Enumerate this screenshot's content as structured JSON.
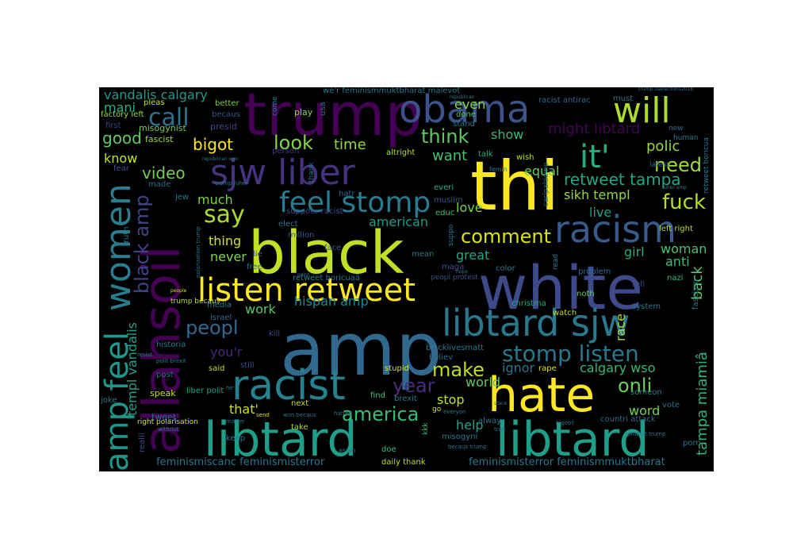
{
  "words": [
    {
      "text": "amp",
      "color": "#31688e"
    },
    {
      "text": "white",
      "color": "#3e4a89"
    },
    {
      "text": "black",
      "color": "#c2df23"
    },
    {
      "text": "thi",
      "color": "#fde725"
    },
    {
      "text": "trump",
      "color": "#440154"
    },
    {
      "text": "hate",
      "color": "#fde725"
    },
    {
      "text": "libtard",
      "color": "#1f9e89"
    },
    {
      "text": "libtard",
      "color": "#1f9e89"
    },
    {
      "text": "allahsoil",
      "color": "#440154"
    },
    {
      "text": "libtard sjw",
      "color": "#2a788e"
    },
    {
      "text": "sjw liber",
      "color": "#46337f"
    },
    {
      "text": "obama",
      "color": "#3b528b"
    },
    {
      "text": "racism",
      "color": "#375b8d"
    },
    {
      "text": "racist",
      "color": "#26828e"
    },
    {
      "text": "will",
      "color": "#addc30"
    },
    {
      "text": "women",
      "color": "#287d8e"
    },
    {
      "text": "listen retweet",
      "color": "#fde725"
    },
    {
      "text": "feel stomp",
      "color": "#287c8e"
    },
    {
      "text": "amp feel",
      "color": "#1f968b"
    },
    {
      "text": "it'",
      "color": "#29af7f"
    },
    {
      "text": "stomp listen",
      "color": "#2a788e"
    },
    {
      "text": "say",
      "color": "#a8db34"
    },
    {
      "text": "call",
      "color": "#2c728e"
    },
    {
      "text": "comment",
      "color": "#d8e219"
    },
    {
      "text": "look",
      "color": "#84d44b"
    },
    {
      "text": "think",
      "color": "#5ec962"
    },
    {
      "text": "peopl",
      "color": "#31688e"
    },
    {
      "text": "fuck",
      "color": "#b5de2b"
    },
    {
      "text": "need",
      "color": "#9fda3a"
    },
    {
      "text": "america",
      "color": "#3bbb75"
    },
    {
      "text": "make",
      "color": "#bddf26"
    },
    {
      "text": "onli",
      "color": "#6ece58"
    },
    {
      "text": "year",
      "color": "#472d7b"
    },
    {
      "text": "black amp",
      "color": "#404387"
    },
    {
      "text": "retweet tampa",
      "color": "#22a884"
    },
    {
      "text": "video",
      "color": "#73d056"
    },
    {
      "text": "good",
      "color": "#63cb5f"
    },
    {
      "text": "bigot",
      "color": "#fde725"
    },
    {
      "text": "time",
      "color": "#8fd744"
    },
    {
      "text": "want",
      "color": "#48c16e"
    },
    {
      "text": "might libtard",
      "color": "#440154"
    },
    {
      "text": "polic",
      "color": "#95d840"
    },
    {
      "text": "woman",
      "color": "#4ac16d"
    },
    {
      "text": "tampa miamiâ",
      "color": "#2db27d"
    },
    {
      "text": "back",
      "color": "#5cc863"
    },
    {
      "text": "calgary wso",
      "color": "#35b779"
    },
    {
      "text": "vandalis calgary",
      "color": "#1f988b"
    },
    {
      "text": "mani",
      "color": "#2ab07f"
    },
    {
      "text": "know",
      "color": "#c8e020"
    },
    {
      "text": "much",
      "color": "#7ad151"
    },
    {
      "text": "thing",
      "color": "#d2e21b"
    },
    {
      "text": "never",
      "color": "#7fd34e"
    },
    {
      "text": "work",
      "color": "#54c568"
    },
    {
      "text": "american",
      "color": "#1e9b8a"
    },
    {
      "text": "hispan amp",
      "color": "#23888e"
    },
    {
      "text": "sikh templ",
      "color": "#93d741"
    },
    {
      "text": "equal",
      "color": "#65cb5e"
    },
    {
      "text": "live",
      "color": "#1fa187"
    },
    {
      "text": "girl",
      "color": "#26ad81"
    },
    {
      "text": "anti",
      "color": "#3fbc73"
    },
    {
      "text": "race",
      "color": "#aadc32"
    },
    {
      "text": "even",
      "color": "#81d34d"
    },
    {
      "text": "show",
      "color": "#37b878"
    },
    {
      "text": "love",
      "color": "#77d153"
    },
    {
      "text": "great",
      "color": "#22a785"
    },
    {
      "text": "stop",
      "color": "#c5e021"
    },
    {
      "text": "help",
      "color": "#20a486"
    },
    {
      "text": "world",
      "color": "#5ac864"
    },
    {
      "text": "word",
      "color": "#73d056"
    },
    {
      "text": "you'r",
      "color": "#482576"
    },
    {
      "text": "that'",
      "color": "#d0e11c"
    },
    {
      "text": "templ vandalis",
      "color": "#1fa188"
    },
    {
      "text": "ignor",
      "color": "#2c728e"
    },
    {
      "text": "feminismiscanc feminismisterror",
      "color": "#2a768e"
    },
    {
      "text": "feminismisterror feminismmuktbharat",
      "color": "#2a788e"
    },
    {
      "text": "misogynist",
      "color": "#70cf57"
    },
    {
      "text": "fascist",
      "color": "#a2da37"
    },
    {
      "text": "presid",
      "color": "#3f4889"
    },
    {
      "text": "pleas",
      "color": "#c8e020"
    },
    {
      "text": "better",
      "color": "#7ad151"
    },
    {
      "text": "factory left",
      "color": "#95d840"
    },
    {
      "text": "becaus",
      "color": "#3b528b"
    },
    {
      "text": "first",
      "color": "#404588"
    },
    {
      "text": "racist antirac",
      "color": "#31688e"
    },
    {
      "text": "must",
      "color": "#2d708e"
    },
    {
      "text": "stand",
      "color": "#2a768e"
    },
    {
      "text": "play",
      "color": "#8bd646"
    },
    {
      "text": "usa",
      "color": "#2f6c8e"
    },
    {
      "text": "done",
      "color": "#54c568"
    },
    {
      "text": "talk",
      "color": "#29af7f"
    },
    {
      "text": "wish",
      "color": "#bade28"
    },
    {
      "text": "altright",
      "color": "#b0dd2f"
    },
    {
      "text": "person",
      "color": "#453781"
    },
    {
      "text": "suppoer racist",
      "color": "#3e4a89"
    },
    {
      "text": "elect",
      "color": "#2c728e"
    },
    {
      "text": "hatr",
      "color": "#31688e"
    },
    {
      "text": "everi",
      "color": "#2ab07f"
    },
    {
      "text": "muslim",
      "color": "#3b528b"
    },
    {
      "text": "educ",
      "color": "#3fbc73"
    },
    {
      "text": "million",
      "color": "#3a548c"
    },
    {
      "text": "face",
      "color": "#355e8d"
    },
    {
      "text": "lie",
      "color": "#3f4889"
    },
    {
      "text": "free",
      "color": "#2d708e"
    },
    {
      "text": "mean",
      "color": "#2a768e"
    },
    {
      "text": "maga",
      "color": "#3d4e8a"
    },
    {
      "text": "color",
      "color": "#2a788e"
    },
    {
      "text": "retweet boricuaâ",
      "color": "#2a788e"
    },
    {
      "text": "peopl protest",
      "color": "#3b528b"
    },
    {
      "text": "problem",
      "color": "#2f6c8e"
    },
    {
      "text": "tell",
      "color": "#3e4a89"
    },
    {
      "text": "noth",
      "color": "#5ec962"
    },
    {
      "text": "nazi",
      "color": "#3bbb75"
    },
    {
      "text": "left right",
      "color": "#b5de2b"
    },
    {
      "text": "fascism",
      "color": "#2a788e"
    },
    {
      "text": "system",
      "color": "#2a788e"
    },
    {
      "text": "christma",
      "color": "#22a785"
    },
    {
      "text": "watch",
      "color": "#bddf26"
    },
    {
      "text": "media",
      "color": "#2a768e"
    },
    {
      "text": "israel",
      "color": "#2f6c8e"
    },
    {
      "text": "historia",
      "color": "#2a788e"
    },
    {
      "text": "post",
      "color": "#2c728e"
    },
    {
      "text": "speak",
      "color": "#c8e020"
    },
    {
      "text": "joke",
      "color": "#2a788e"
    },
    {
      "text": "tweet",
      "color": "#2d708e"
    },
    {
      "text": "right polarisation",
      "color": "#d8e219"
    },
    {
      "text": "liber polit",
      "color": "#22a785"
    },
    {
      "text": "said",
      "color": "#bddf26"
    },
    {
      "text": "still",
      "color": "#3b528b"
    },
    {
      "text": "kill",
      "color": "#3e4a89"
    },
    {
      "text": "keep",
      "color": "#2a788e"
    },
    {
      "text": "believ",
      "color": "#2f6c8e"
    },
    {
      "text": "blacklivesmatt",
      "color": "#2a788e"
    },
    {
      "text": "stupid",
      "color": "#d2e21b"
    },
    {
      "text": "find",
      "color": "#3fbc73"
    },
    {
      "text": "brexit",
      "color": "#2a788e"
    },
    {
      "text": "next",
      "color": "#bade28"
    },
    {
      "text": "take",
      "color": "#b0dd2f"
    },
    {
      "text": "doe",
      "color": "#3bbb75"
    },
    {
      "text": "daily thank",
      "color": "#bddf26"
    },
    {
      "text": "misogyni",
      "color": "#2a788e"
    },
    {
      "text": "alway",
      "color": "#2c728e"
    },
    {
      "text": "someon",
      "color": "#2a788e"
    },
    {
      "text": "vote",
      "color": "#2c728e"
    },
    {
      "text": "countri attack",
      "color": "#2f6c8e"
    },
    {
      "text": "rape",
      "color": "#d8e219"
    },
    {
      "text": "latest",
      "color": "#2f6c8e"
    },
    {
      "text": "human",
      "color": "#2a788e"
    },
    {
      "text": "new",
      "color": "#2f6c8e"
    },
    {
      "text": "porn",
      "color": "#2c728e"
    },
    {
      "text": "truth",
      "color": "#2a788e"
    },
    {
      "text": "made",
      "color": "#2f6c8e"
    },
    {
      "text": "fear",
      "color": "#3b528b"
    },
    {
      "text": "jew",
      "color": "#2a788e"
    },
    {
      "text": "realli",
      "color": "#3e4a89"
    },
    {
      "text": "we'r feminismmuktbharat malevot",
      "color": "#2a788e"
    },
    {
      "text": "trump uselections2016",
      "color": "#2a788e"
    },
    {
      "text": "retweet boricua",
      "color": "#2a788e"
    },
    {
      "text": "come",
      "color": "#2a788e"
    },
    {
      "text": "thank",
      "color": "#2a788e"
    },
    {
      "text": "suppo",
      "color": "#2a788e"
    },
    {
      "text": "read",
      "color": "#2a788e"
    },
    {
      "text": "kkk",
      "color": "#3fbc73"
    },
    {
      "text": "go",
      "color": "#d8e219"
    },
    {
      "text": "everyon",
      "color": "#2a788e"
    },
    {
      "text": "trump fuher",
      "color": "#2a788e"
    },
    {
      "text": "trump becaus",
      "color": "#bddf26"
    },
    {
      "text": "polarisation trump",
      "color": "#2a788e"
    },
    {
      "text": "republican won",
      "color": "#2a788e"
    },
    {
      "text": "asian",
      "color": "#2a788e"
    },
    {
      "text": "hatred",
      "color": "#2a788e"
    },
    {
      "text": "bigotri",
      "color": "#2a788e"
    },
    {
      "text": "protest trump",
      "color": "#2a788e"
    },
    {
      "text": "becaus trump",
      "color": "#2a788e"
    },
    {
      "text": "caripaladino",
      "color": "#2a788e"
    },
    {
      "text": "femin",
      "color": "#2a788e"
    },
    {
      "text": "true",
      "color": "#2a788e"
    },
    {
      "text": "people",
      "color": "#d8e219"
    },
    {
      "text": "resist",
      "color": "#2a788e"
    },
    {
      "text": "polit brexit",
      "color": "#2a788e"
    },
    {
      "text": "he'",
      "color": "#2a788e"
    },
    {
      "text": "matter",
      "color": "#2a788e"
    },
    {
      "text": "without",
      "color": "#2a788e"
    },
    {
      "text": "send",
      "color": "#d8e219"
    },
    {
      "text": "won becaus",
      "color": "#2a788e"
    },
    {
      "text": "point",
      "color": "#2a788e"
    },
    {
      "text": "fuher amp",
      "color": "#2a788e"
    },
    {
      "text": "republican",
      "color": "#2a788e"
    },
    {
      "text": "hope",
      "color": "#2a788e"
    },
    {
      "text": "stace",
      "color": "#2a788e"
    }
  ]
}
